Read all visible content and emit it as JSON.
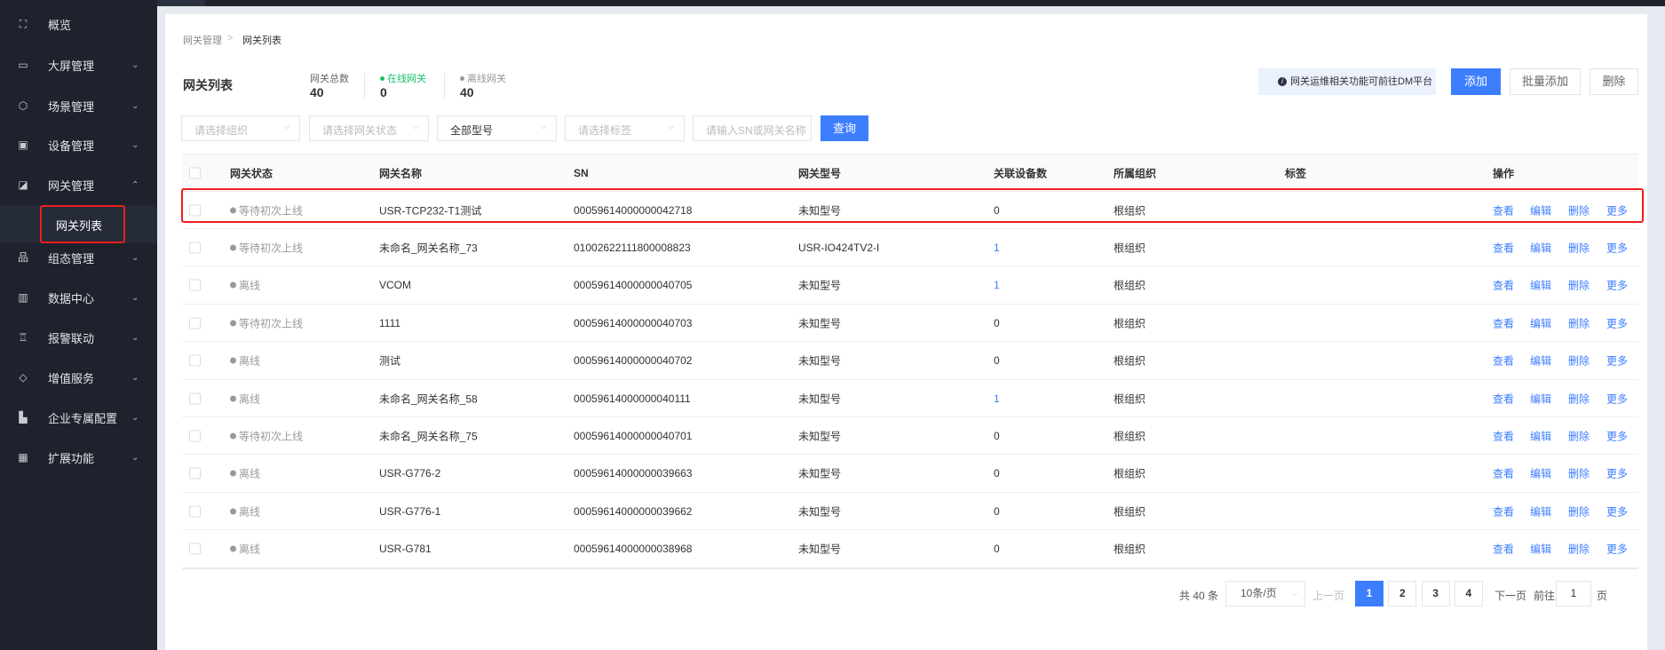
{
  "sidebar": {
    "items": [
      {
        "label": "概览",
        "icon": "overview-icon",
        "glyph": "⛶",
        "expandable": false
      },
      {
        "label": "大屏管理",
        "icon": "monitor-icon",
        "glyph": "▭",
        "expandable": true
      },
      {
        "label": "场景管理",
        "icon": "cube-icon",
        "glyph": "⬡",
        "expandable": true
      },
      {
        "label": "设备管理",
        "icon": "device-icon",
        "glyph": "▣",
        "expandable": true
      },
      {
        "label": "网关管理",
        "icon": "gateway-icon",
        "glyph": "◪",
        "expandable": true,
        "expanded": true
      },
      {
        "label": "组态管理",
        "icon": "topology-icon",
        "glyph": "品",
        "expandable": true
      },
      {
        "label": "数据中心",
        "icon": "bar-chart-icon",
        "glyph": "▥",
        "expandable": true
      },
      {
        "label": "报警联动",
        "icon": "alarm-icon",
        "glyph": "♖",
        "expandable": true
      },
      {
        "label": "增值服务",
        "icon": "diamond-icon",
        "glyph": "◇",
        "expandable": true
      },
      {
        "label": "企业专属配置",
        "icon": "building-icon",
        "glyph": "▙",
        "expandable": true
      },
      {
        "label": "扩展功能",
        "icon": "grid-icon",
        "glyph": "▦",
        "expandable": true
      }
    ],
    "sub_item": "网关列表",
    "chevron_down": "⌄",
    "chevron_up": "⌃"
  },
  "breadcrumb": {
    "parent": "网关管理",
    "separator": ">",
    "current": "网关列表"
  },
  "header": {
    "title": "网关列表",
    "stats": [
      {
        "label": "网关总数",
        "value": "40"
      },
      {
        "label": "在线网关",
        "value": "0",
        "color": "#19be6b"
      },
      {
        "label": "离线网关",
        "value": "40",
        "color": "#999999"
      }
    ],
    "notice": "网关运维相关功能可前往DM平台",
    "notice_icon": "i",
    "add": "添加",
    "batch_add": "批量添加",
    "delete": "删除"
  },
  "filters": {
    "org": "请选择组织",
    "status": "请选择网关状态",
    "model": "全部型号",
    "tag": "请选择标签",
    "search_placeholder": "请输入SN或网关名称",
    "query": "查询"
  },
  "table": {
    "columns": [
      "网关状态",
      "网关名称",
      "SN",
      "网关型号",
      "关联设备数",
      "所属组织",
      "标签",
      "操作"
    ],
    "actions": [
      "查看",
      "编辑",
      "删除",
      "更多"
    ],
    "rows": [
      {
        "status": "等待初次上线",
        "name": "USR-TCP232-T1测试",
        "sn": "00059614000000042718",
        "model": "未知型号",
        "devices": "0",
        "org": "根组织",
        "tag": ""
      },
      {
        "status": "等待初次上线",
        "name": "未命名_网关名称_73",
        "sn": "01002622111800008823",
        "model": "USR-IO424TV2-I",
        "devices": "1",
        "org": "根组织",
        "tag": ""
      },
      {
        "status": "离线",
        "name": "VCOM",
        "sn": "00059614000000040705",
        "model": "未知型号",
        "devices": "1",
        "org": "根组织",
        "tag": ""
      },
      {
        "status": "等待初次上线",
        "name": "1111",
        "sn": "00059614000000040703",
        "model": "未知型号",
        "devices": "0",
        "org": "根组织",
        "tag": ""
      },
      {
        "status": "离线",
        "name": "测试",
        "sn": "00059614000000040702",
        "model": "未知型号",
        "devices": "0",
        "org": "根组织",
        "tag": ""
      },
      {
        "status": "离线",
        "name": "未命名_网关名称_58",
        "sn": "00059614000000040111",
        "model": "未知型号",
        "devices": "1",
        "org": "根组织",
        "tag": ""
      },
      {
        "status": "等待初次上线",
        "name": "未命名_网关名称_75",
        "sn": "00059614000000040701",
        "model": "未知型号",
        "devices": "0",
        "org": "根组织",
        "tag": ""
      },
      {
        "status": "离线",
        "name": "USR-G776-2",
        "sn": "00059614000000039663",
        "model": "未知型号",
        "devices": "0",
        "org": "根组织",
        "tag": ""
      },
      {
        "status": "离线",
        "name": "USR-G776-1",
        "sn": "00059614000000039662",
        "model": "未知型号",
        "devices": "0",
        "org": "根组织",
        "tag": ""
      },
      {
        "status": "离线",
        "name": "USR-G781",
        "sn": "00059614000000038968",
        "model": "未知型号",
        "devices": "0",
        "org": "根组织",
        "tag": ""
      }
    ]
  },
  "pagination": {
    "total": "共 40 条",
    "page_size": "10条/页",
    "prev": "上一页",
    "pages": [
      "1",
      "2",
      "3",
      "4"
    ],
    "current": "1",
    "next": "下一页",
    "goto_label": "前往",
    "goto_value": "1",
    "page_unit": "页"
  },
  "colors": {
    "primary": "#3d7eff",
    "sidebar": "#1e222d",
    "highlight": "#f01d1d",
    "link_count": "#3d7eff"
  }
}
